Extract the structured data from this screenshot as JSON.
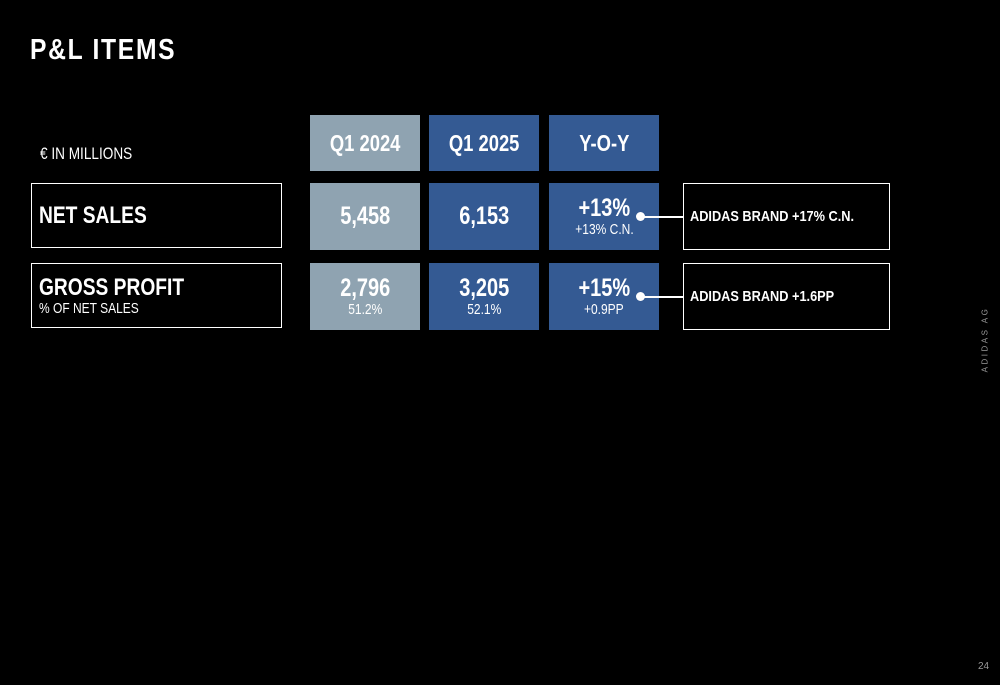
{
  "header": {
    "title": "P&L ITEMS",
    "unit": "€ IN MILLIONS"
  },
  "table": {
    "columns": [
      "Q1 2024",
      "Q1 2025",
      "Y-O-Y"
    ],
    "rows": [
      {
        "label": "NET SALES",
        "cells": [
          {
            "value": "5,458"
          },
          {
            "value": "6,153"
          },
          {
            "value": "+13%",
            "sub": "+13% C.N."
          }
        ],
        "note": "ADIDAS BRAND +17% C.N."
      },
      {
        "label": "GROSS PROFIT",
        "sublabel": "% OF NET SALES",
        "cells": [
          {
            "value": "2,796",
            "sub": "51.2%"
          },
          {
            "value": "3,205",
            "sub": "52.1%"
          },
          {
            "value": "+15%",
            "sub": "+0.9PP"
          }
        ],
        "note": "ADIDAS BRAND +1.6PP"
      }
    ]
  },
  "footer": {
    "company": "ADIDAS AG",
    "page": "24"
  }
}
